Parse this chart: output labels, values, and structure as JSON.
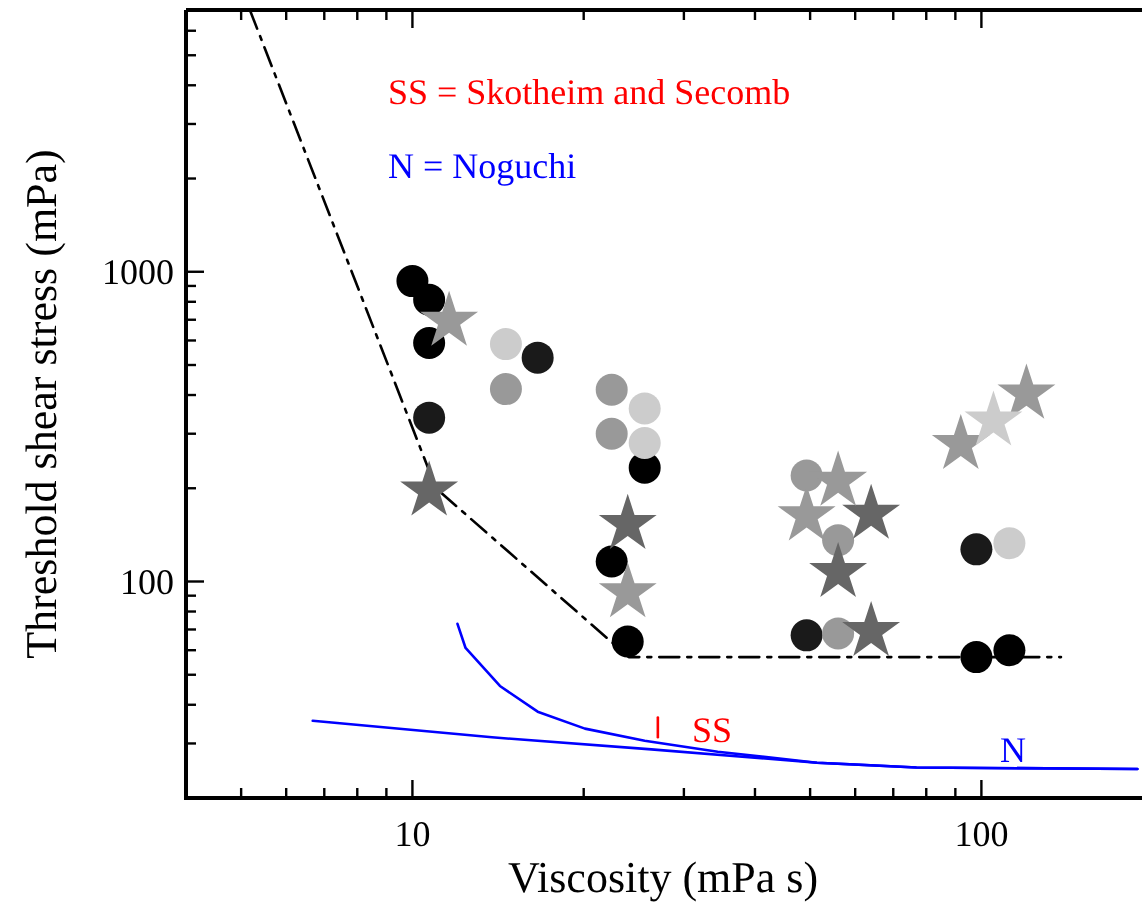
{
  "chart_data": {
    "type": "scatter",
    "xlabel": "Viscosity (mPa s)",
    "ylabel": "Threshold shear stress (mPa)",
    "log": "xy",
    "xlim": [
      4,
      190
    ],
    "ylim": [
      20,
      7000
    ],
    "xticks": [
      {
        "value": 5,
        "label": null
      },
      {
        "value": 6,
        "label": null
      },
      {
        "value": 7,
        "label": null
      },
      {
        "value": 8,
        "label": null
      },
      {
        "value": 9,
        "label": null
      },
      10,
      {
        "value": 20,
        "label": null
      },
      {
        "value": 30,
        "label": null
      },
      {
        "value": 40,
        "label": null
      },
      {
        "value": 50,
        "label": null
      },
      {
        "value": 60,
        "label": null
      },
      {
        "value": 70,
        "label": null
      },
      {
        "value": 80,
        "label": null
      },
      {
        "value": 90,
        "label": null
      },
      100
    ],
    "yticks": [
      {
        "value": 30,
        "label": null
      },
      {
        "value": 40,
        "label": null
      },
      {
        "value": 50,
        "label": null
      },
      {
        "value": 60,
        "label": null
      },
      {
        "value": 70,
        "label": null
      },
      {
        "value": 80,
        "label": null
      },
      {
        "value": 90,
        "label": null
      },
      100,
      {
        "value": 200,
        "label": null
      },
      {
        "value": 300,
        "label": null
      },
      {
        "value": 400,
        "label": null
      },
      {
        "value": 500,
        "label": null
      },
      {
        "value": 600,
        "label": null
      },
      {
        "value": 700,
        "label": null
      },
      {
        "value": 800,
        "label": null
      },
      {
        "value": 900,
        "label": null
      },
      1000,
      {
        "value": 2000,
        "label": null
      },
      {
        "value": 3000,
        "label": null
      },
      {
        "value": 4000,
        "label": null
      },
      {
        "value": 5000,
        "label": null
      },
      {
        "value": 6000,
        "label": null
      }
    ],
    "series": [
      {
        "type": "line",
        "line_style": "dashed",
        "color": "#000000",
        "x": [
          5.18,
          11,
          24,
          138
        ],
        "values": [
          7000,
          200,
          57,
          57
        ]
      },
      {
        "type": "line",
        "line_style": "solid",
        "color": "#0000ff",
        "x": [
          12,
          12.4,
          14.25,
          16.6,
          20.1,
          25.6,
          34.4,
          51.4,
          76.9,
          188
        ],
        "values": [
          73,
          61,
          46,
          38,
          33.5,
          30.6,
          28.2,
          26,
          25.1,
          24.8
        ]
      },
      {
        "type": "line",
        "line_style": "solid",
        "color": "#0000ff",
        "x": [
          6.68,
          13.8,
          26.3,
          51.4,
          76.9,
          188
        ],
        "values": [
          35.5,
          31.4,
          28.7,
          26,
          25.1,
          24.8
        ]
      },
      {
        "type": "line",
        "line_style": "solid",
        "color": "#ff0000",
        "x": [
          27,
          27
        ],
        "values": [
          31.4,
          36.4
        ]
      },
      {
        "marker": "circle",
        "color": "#000000",
        "x": [
          10,
          10.7,
          10.7,
          25.6,
          22.4,
          23.9,
          98,
          112
        ],
        "values": [
          933,
          812,
          589,
          233,
          116,
          64,
          57,
          60
        ]
      },
      {
        "marker": "circle",
        "color": "#1a1a1a",
        "x": [
          10.7,
          16.6,
          49.3,
          98
        ],
        "values": [
          338,
          528,
          67,
          127
        ]
      },
      {
        "marker": "circle",
        "color": "#999999",
        "x": [
          14.6,
          22.4,
          22.4,
          49.3,
          56,
          56
        ],
        "values": [
          418,
          416,
          300,
          220,
          136,
          68
        ]
      },
      {
        "marker": "circle",
        "color": "#cccccc",
        "x": [
          14.6,
          25.6,
          25.6,
          112
        ],
        "values": [
          584,
          362,
          280,
          133
        ]
      },
      {
        "marker": "star",
        "color": "#666666",
        "x": [
          10.7,
          23.9,
          64,
          56,
          64
        ],
        "values": [
          196,
          153,
          165,
          107,
          69
        ]
      },
      {
        "marker": "star",
        "color": "#999999",
        "x": [
          11.6,
          23.9,
          56,
          49.3,
          92,
          120
        ],
        "values": [
          693,
          92,
          211,
          163,
          277,
          403
        ]
      },
      {
        "marker": "star",
        "color": "#cccccc",
        "x": [
          105
        ],
        "values": [
          330
        ]
      }
    ],
    "annotations": [
      "SS = Skotheim and Secomb",
      "N = Noguchi",
      "SS",
      "N"
    ]
  }
}
